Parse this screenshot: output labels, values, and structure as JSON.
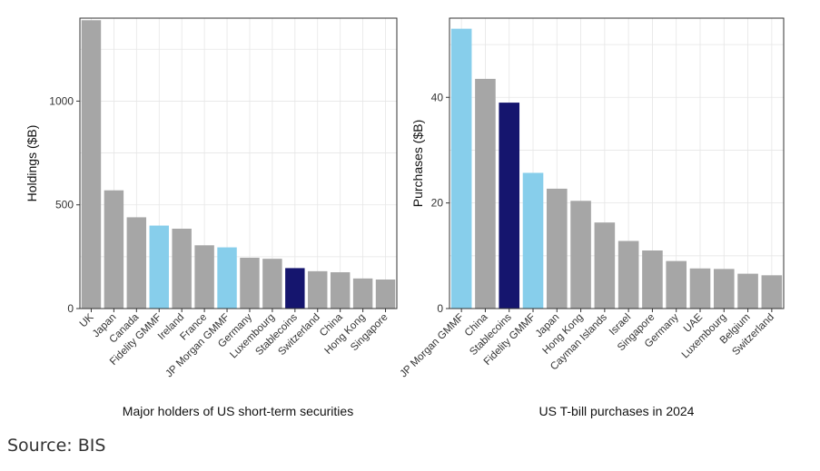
{
  "colors": {
    "gray": "#a6a6a6",
    "light_blue": "#87ceeb",
    "navy": "#15156e",
    "grid": "#e6e6e6",
    "axis": "#333333"
  },
  "source_text": "Source: BIS",
  "chart_data": [
    {
      "type": "bar",
      "xlabel": "Major holders of US short-term securities",
      "ylabel": "Holdings ($B)",
      "ylim": [
        0,
        1400
      ],
      "yticks": [
        0,
        500,
        1000
      ],
      "grid": true,
      "categories": [
        "UK",
        "Japan",
        "Canada",
        "Fidelity GMMF",
        "Ireland",
        "France",
        "JP Morgan GMMF",
        "Germany",
        "Luxembourg",
        "Stablecoins",
        "Switzerland",
        "China",
        "Hong Kong",
        "Singapore"
      ],
      "values": [
        1390,
        570,
        440,
        400,
        385,
        305,
        295,
        245,
        240,
        195,
        180,
        175,
        145,
        140
      ],
      "bar_colors": [
        "gray",
        "gray",
        "gray",
        "light_blue",
        "gray",
        "gray",
        "light_blue",
        "gray",
        "gray",
        "navy",
        "gray",
        "gray",
        "gray",
        "gray"
      ]
    },
    {
      "type": "bar",
      "xlabel": "US T-bill purchases in 2024",
      "ylabel": "Purchases ($B)",
      "ylim": [
        0,
        55
      ],
      "yticks": [
        0,
        20,
        40
      ],
      "grid": true,
      "categories": [
        "JP Morgan GMMF",
        "China",
        "Stablecoins",
        "Fidelity GMMF",
        "Japan",
        "Hong Kong",
        "Cayman Islands",
        "Israel",
        "Singapore",
        "Germany",
        "UAE",
        "Luxembourg",
        "Belgium",
        "Switzerland"
      ],
      "values": [
        53,
        43.5,
        39,
        25.7,
        22.7,
        20.4,
        16.3,
        12.8,
        11,
        9,
        7.6,
        7.5,
        6.6,
        6.3
      ],
      "bar_colors": [
        "light_blue",
        "gray",
        "navy",
        "light_blue",
        "gray",
        "gray",
        "gray",
        "gray",
        "gray",
        "gray",
        "gray",
        "gray",
        "gray",
        "gray"
      ]
    }
  ]
}
